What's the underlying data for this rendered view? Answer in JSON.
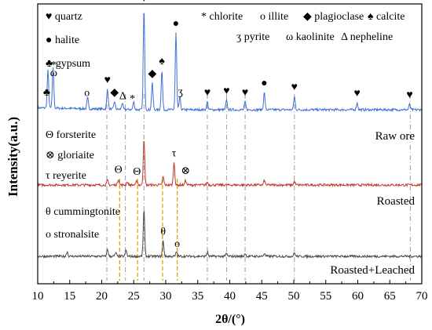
{
  "chart_data": {
    "type": "line",
    "xlabel": "2θ/(°)",
    "ylabel": "Intensity(a.u.)",
    "xlim": [
      10,
      70
    ],
    "x_ticks": [
      "10",
      "15",
      "20",
      "25",
      "30",
      "35",
      "40",
      "45",
      "50",
      "55",
      "60",
      "65",
      "70"
    ],
    "grid": false,
    "legend_top": [
      {
        "symbol": "♥",
        "name": "quartz"
      },
      {
        "symbol": "*",
        "name": "chlorite"
      },
      {
        "symbol": "o",
        "name": "illite"
      },
      {
        "symbol": "◆",
        "name": "plagioclase"
      },
      {
        "symbol": "♠",
        "name": "calcite"
      },
      {
        "symbol": "●",
        "name": "halite"
      },
      {
        "symbol": "ʒ",
        "name": "pyrite"
      },
      {
        "symbol": "ω",
        "name": "kaolinite"
      },
      {
        "symbol": "Δ",
        "name": "nepheline"
      },
      {
        "symbol": "♣",
        "name": "gypsum"
      }
    ],
    "legend_roasted": [
      {
        "symbol": "Θ",
        "name": "forsterite"
      },
      {
        "symbol": "⊗",
        "name": "gloriaite"
      },
      {
        "symbol": "τ",
        "name": "reyerite"
      }
    ],
    "legend_leached": [
      {
        "symbol": "θ",
        "name": "cummingtonite"
      },
      {
        "symbol": "o",
        "name": "stronalsite"
      }
    ],
    "series": [
      {
        "name": "Raw ore",
        "color": "#3f6fd8",
        "peaks": [
          {
            "x": 11.6,
            "y": 48
          },
          {
            "x": 12.4,
            "y": 52
          },
          {
            "x": 17.8,
            "y": 14
          },
          {
            "x": 20.9,
            "y": 26
          },
          {
            "x": 22.0,
            "y": 10
          },
          {
            "x": 23.2,
            "y": 8
          },
          {
            "x": 25.0,
            "y": 10
          },
          {
            "x": 26.6,
            "y": 130
          },
          {
            "x": 27.9,
            "y": 34
          },
          {
            "x": 29.4,
            "y": 50
          },
          {
            "x": 31.6,
            "y": 98
          },
          {
            "x": 32.2,
            "y": 16
          },
          {
            "x": 36.5,
            "y": 10
          },
          {
            "x": 39.5,
            "y": 12
          },
          {
            "x": 42.4,
            "y": 10
          },
          {
            "x": 45.4,
            "y": 22
          },
          {
            "x": 50.1,
            "y": 17
          },
          {
            "x": 59.9,
            "y": 9
          },
          {
            "x": 68.1,
            "y": 7
          }
        ],
        "markers": [
          {
            "x": 11.4,
            "s": "♣"
          },
          {
            "x": 12.5,
            "s": "ω"
          },
          {
            "x": 12.5,
            "s": "*"
          },
          {
            "x": 17.7,
            "s": "o"
          },
          {
            "x": 20.9,
            "s": "♥"
          },
          {
            "x": 22.0,
            "s": "◆"
          },
          {
            "x": 23.3,
            "s": "Δ"
          },
          {
            "x": 24.8,
            "s": "*"
          },
          {
            "x": 26.6,
            "s": "♥"
          },
          {
            "x": 27.9,
            "s": "◆"
          },
          {
            "x": 29.4,
            "s": "♠"
          },
          {
            "x": 31.6,
            "s": "●"
          },
          {
            "x": 32.3,
            "s": "ʒ"
          },
          {
            "x": 36.5,
            "s": "♥"
          },
          {
            "x": 39.5,
            "s": "♥"
          },
          {
            "x": 42.4,
            "s": "♥"
          },
          {
            "x": 45.4,
            "s": "●"
          },
          {
            "x": 50.1,
            "s": "♥"
          },
          {
            "x": 59.9,
            "s": "♥"
          },
          {
            "x": 68.1,
            "s": "♥"
          }
        ]
      },
      {
        "name": "Roasted",
        "color": "#c0392b",
        "peaks": [
          {
            "x": 20.9,
            "y": 8
          },
          {
            "x": 22.6,
            "y": 10
          },
          {
            "x": 24.0,
            "y": 5
          },
          {
            "x": 25.5,
            "y": 7
          },
          {
            "x": 26.6,
            "y": 80
          },
          {
            "x": 29.6,
            "y": 14
          },
          {
            "x": 31.3,
            "y": 38
          },
          {
            "x": 33.1,
            "y": 8
          },
          {
            "x": 36.5,
            "y": 5
          },
          {
            "x": 45.4,
            "y": 8
          },
          {
            "x": 50.1,
            "y": 6
          }
        ],
        "markers": [
          {
            "x": 22.6,
            "s": "Θ"
          },
          {
            "x": 25.5,
            "s": "Θ"
          },
          {
            "x": 31.3,
            "s": "τ"
          },
          {
            "x": 33.1,
            "s": "⊗"
          }
        ]
      },
      {
        "name": "Roasted+Leached",
        "color": "#4a4a4a",
        "peaks": [
          {
            "x": 14.6,
            "y": 8
          },
          {
            "x": 20.9,
            "y": 12
          },
          {
            "x": 22.2,
            "y": 6
          },
          {
            "x": 23.8,
            "y": 10
          },
          {
            "x": 26.6,
            "y": 80
          },
          {
            "x": 29.6,
            "y": 26
          },
          {
            "x": 31.7,
            "y": 8
          },
          {
            "x": 36.5,
            "y": 7
          },
          {
            "x": 39.5,
            "y": 5
          },
          {
            "x": 42.4,
            "y": 5
          },
          {
            "x": 45.4,
            "y": 5
          },
          {
            "x": 50.1,
            "y": 6
          }
        ],
        "markers": [
          {
            "x": 29.6,
            "s": "θ"
          },
          {
            "x": 31.8,
            "s": "o"
          }
        ]
      }
    ],
    "reference_lines_gray": [
      20.8,
      23.7,
      26.6,
      36.5,
      39.5,
      42.4,
      50.1,
      68.2
    ],
    "reference_lines_orange": [
      22.8,
      25.6,
      29.5,
      31.8
    ],
    "colors": {
      "raw": "#3f6fd8",
      "roasted": "#c0392b",
      "leached": "#4a4a4a",
      "gray_ref": "#9a9a9a",
      "orange_ref": "#e0a000"
    }
  }
}
